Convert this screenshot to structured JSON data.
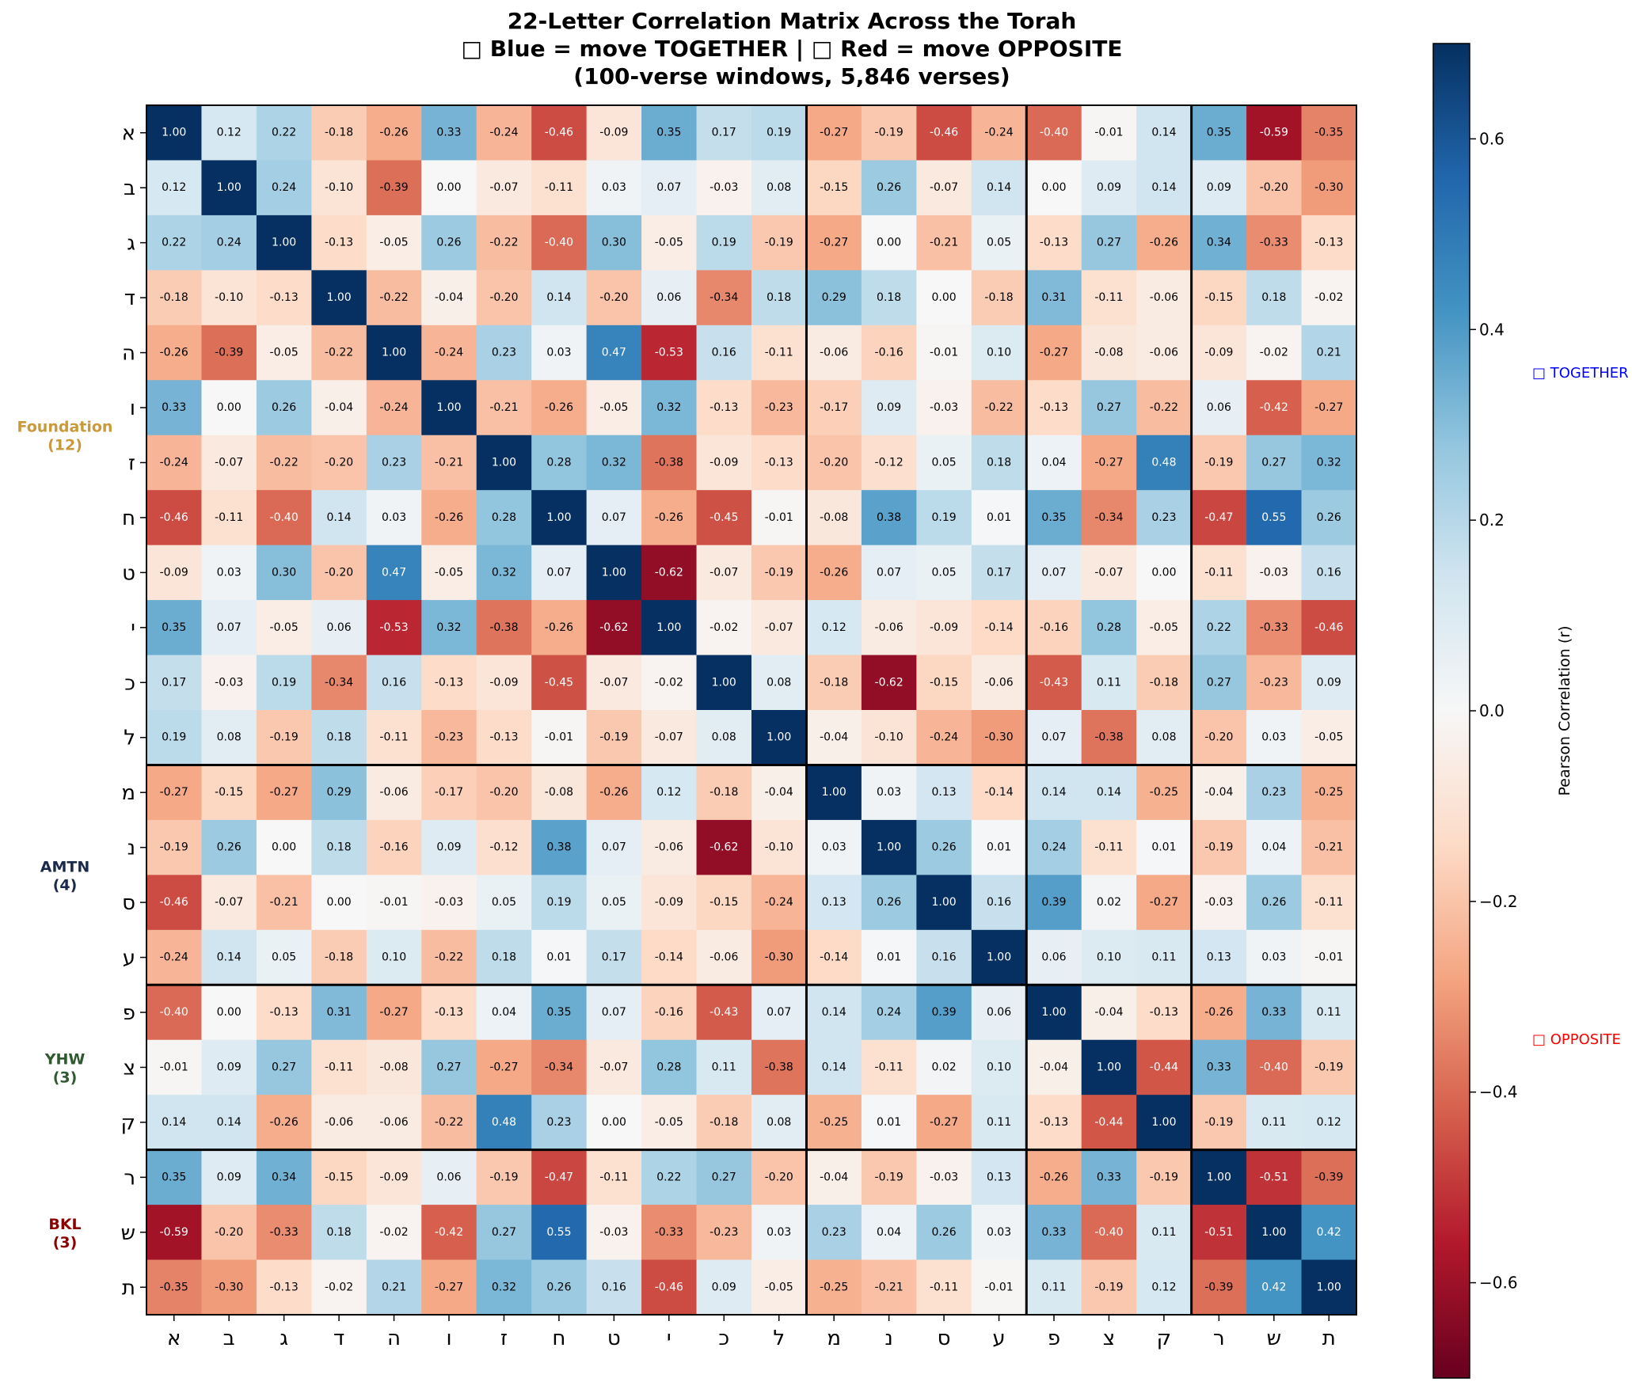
{
  "chart_data": {
    "type": "heatmap",
    "title": [
      "22-Letter Correlation Matrix Across the Torah",
      "□ Blue = move TOGETHER | □ Red = move OPPOSITE",
      "(100-verse windows, 5,846 verses)"
    ],
    "labels": [
      "א",
      "ב",
      "ג",
      "ד",
      "ה",
      "ו",
      "ז",
      "ח",
      "ט",
      "י",
      "כ",
      "ל",
      "מ",
      "נ",
      "ס",
      "ע",
      "פ",
      "צ",
      "ק",
      "ר",
      "ש",
      "ת"
    ],
    "matrix": [
      [
        1.0,
        0.12,
        0.22,
        -0.18,
        -0.26,
        0.33,
        -0.24,
        -0.46,
        -0.09,
        0.35,
        0.17,
        0.19,
        -0.27,
        -0.19,
        -0.46,
        -0.24,
        -0.4,
        -0.01,
        0.14,
        0.35,
        -0.59,
        -0.35
      ],
      [
        0.12,
        1.0,
        0.24,
        -0.1,
        -0.39,
        0.0,
        -0.07,
        -0.11,
        0.03,
        0.07,
        -0.03,
        0.08,
        -0.15,
        0.26,
        -0.07,
        0.14,
        -0.0,
        0.09,
        0.14,
        0.09,
        -0.2,
        -0.3
      ],
      [
        0.22,
        0.24,
        1.0,
        -0.13,
        -0.05,
        0.26,
        -0.22,
        -0.4,
        0.3,
        -0.05,
        0.19,
        -0.19,
        -0.27,
        0.0,
        -0.21,
        0.05,
        -0.13,
        0.27,
        -0.26,
        0.34,
        -0.33,
        -0.13
      ],
      [
        -0.18,
        -0.1,
        -0.13,
        1.0,
        -0.22,
        -0.04,
        -0.2,
        0.14,
        -0.2,
        0.06,
        -0.34,
        0.18,
        0.29,
        0.18,
        -0.0,
        -0.18,
        0.31,
        -0.11,
        -0.06,
        -0.15,
        0.18,
        -0.02
      ],
      [
        -0.26,
        -0.39,
        -0.05,
        -0.22,
        1.0,
        -0.24,
        0.23,
        0.03,
        0.47,
        -0.53,
        0.16,
        -0.11,
        -0.06,
        -0.16,
        -0.01,
        0.1,
        -0.27,
        -0.08,
        -0.06,
        -0.09,
        -0.02,
        0.21
      ],
      [
        0.33,
        0.0,
        0.26,
        -0.04,
        -0.24,
        1.0,
        -0.21,
        -0.26,
        -0.05,
        0.32,
        -0.13,
        -0.23,
        -0.17,
        0.09,
        -0.03,
        -0.22,
        -0.13,
        0.27,
        -0.22,
        0.06,
        -0.42,
        -0.27
      ],
      [
        -0.24,
        -0.07,
        -0.22,
        -0.2,
        0.23,
        -0.21,
        1.0,
        0.28,
        0.32,
        -0.38,
        -0.09,
        -0.13,
        -0.2,
        -0.12,
        0.05,
        0.18,
        0.04,
        -0.27,
        0.48,
        -0.19,
        0.27,
        0.32
      ],
      [
        -0.46,
        -0.11,
        -0.4,
        0.14,
        0.03,
        -0.26,
        0.28,
        1.0,
        0.07,
        -0.26,
        -0.45,
        -0.01,
        -0.08,
        0.38,
        0.19,
        0.01,
        0.35,
        -0.34,
        0.23,
        -0.47,
        0.55,
        0.26
      ],
      [
        -0.09,
        0.03,
        0.3,
        -0.2,
        0.47,
        -0.05,
        0.32,
        0.07,
        1.0,
        -0.62,
        -0.07,
        -0.19,
        -0.26,
        0.07,
        0.05,
        0.17,
        0.07,
        -0.07,
        -0.0,
        -0.11,
        -0.03,
        0.16
      ],
      [
        0.35,
        0.07,
        -0.05,
        0.06,
        -0.53,
        0.32,
        -0.38,
        -0.26,
        -0.62,
        1.0,
        -0.02,
        -0.07,
        0.12,
        -0.06,
        -0.09,
        -0.14,
        -0.16,
        0.28,
        -0.05,
        0.22,
        -0.33,
        -0.46
      ],
      [
        0.17,
        -0.03,
        0.19,
        -0.34,
        0.16,
        -0.13,
        -0.09,
        -0.45,
        -0.07,
        -0.02,
        1.0,
        0.08,
        -0.18,
        -0.62,
        -0.15,
        -0.06,
        -0.43,
        0.11,
        -0.18,
        0.27,
        -0.23,
        0.09
      ],
      [
        0.19,
        0.08,
        -0.19,
        0.18,
        -0.11,
        -0.23,
        -0.13,
        -0.01,
        -0.19,
        -0.07,
        0.08,
        1.0,
        -0.04,
        -0.1,
        -0.24,
        -0.3,
        0.07,
        -0.38,
        0.08,
        -0.2,
        0.03,
        -0.05
      ],
      [
        -0.27,
        -0.15,
        -0.27,
        0.29,
        -0.06,
        -0.17,
        -0.2,
        -0.08,
        -0.26,
        0.12,
        -0.18,
        -0.04,
        1.0,
        0.03,
        0.13,
        -0.14,
        0.14,
        0.14,
        -0.25,
        -0.04,
        0.23,
        -0.25
      ],
      [
        -0.19,
        0.26,
        0.0,
        0.18,
        -0.16,
        0.09,
        -0.12,
        0.38,
        0.07,
        -0.06,
        -0.62,
        -0.1,
        0.03,
        1.0,
        0.26,
        0.01,
        0.24,
        -0.11,
        0.01,
        -0.19,
        0.04,
        -0.21
      ],
      [
        -0.46,
        -0.07,
        -0.21,
        -0.0,
        -0.01,
        -0.03,
        0.05,
        0.19,
        0.05,
        -0.09,
        -0.15,
        -0.24,
        0.13,
        0.26,
        1.0,
        0.16,
        0.39,
        0.02,
        -0.27,
        -0.03,
        0.26,
        -0.11
      ],
      [
        -0.24,
        0.14,
        0.05,
        -0.18,
        0.1,
        -0.22,
        0.18,
        0.01,
        0.17,
        -0.14,
        -0.06,
        -0.3,
        -0.14,
        0.01,
        0.16,
        1.0,
        0.06,
        0.1,
        0.11,
        0.13,
        0.03,
        -0.01
      ],
      [
        -0.4,
        -0.0,
        -0.13,
        0.31,
        -0.27,
        -0.13,
        0.04,
        0.35,
        0.07,
        -0.16,
        -0.43,
        0.07,
        0.14,
        0.24,
        0.39,
        0.06,
        1.0,
        -0.04,
        -0.13,
        -0.26,
        0.33,
        0.11
      ],
      [
        -0.01,
        0.09,
        0.27,
        -0.11,
        -0.08,
        0.27,
        -0.27,
        -0.34,
        -0.07,
        0.28,
        0.11,
        -0.38,
        0.14,
        -0.11,
        0.02,
        0.1,
        -0.04,
        1.0,
        -0.44,
        0.33,
        -0.4,
        -0.19
      ],
      [
        0.14,
        0.14,
        -0.26,
        -0.06,
        -0.06,
        -0.22,
        0.48,
        0.23,
        -0.0,
        -0.05,
        -0.18,
        0.08,
        -0.25,
        0.01,
        -0.27,
        0.11,
        -0.13,
        -0.44,
        1.0,
        -0.19,
        0.11,
        0.12
      ],
      [
        0.35,
        0.09,
        0.34,
        -0.15,
        -0.09,
        0.06,
        -0.19,
        -0.47,
        -0.11,
        0.22,
        0.27,
        -0.2,
        -0.04,
        -0.19,
        -0.03,
        0.13,
        -0.26,
        0.33,
        -0.19,
        1.0,
        -0.51,
        -0.39
      ],
      [
        -0.59,
        -0.2,
        -0.33,
        0.18,
        -0.02,
        -0.42,
        0.27,
        0.55,
        -0.03,
        -0.33,
        -0.23,
        0.03,
        0.23,
        0.04,
        0.26,
        0.03,
        0.33,
        -0.4,
        0.11,
        -0.51,
        1.0,
        0.42
      ],
      [
        -0.35,
        -0.3,
        -0.13,
        -0.02,
        0.21,
        -0.27,
        0.32,
        0.26,
        0.16,
        -0.46,
        0.09,
        -0.05,
        -0.25,
        -0.21,
        -0.11,
        -0.01,
        0.11,
        -0.19,
        0.12,
        -0.39,
        0.42,
        1.0
      ]
    ],
    "groups": [
      {
        "name": "Foundation",
        "count": "(12)",
        "size": 12,
        "color": "#c9993a"
      },
      {
        "name": "AMTN",
        "count": "(4)",
        "size": 4,
        "color": "#1b2a4a"
      },
      {
        "name": "YHW",
        "count": "(3)",
        "size": 3,
        "color": "#2f5a2f"
      },
      {
        "name": "BKL",
        "count": "(3)",
        "size": 3,
        "color": "#8b0000"
      }
    ],
    "colormap": "RdBu",
    "vmin": -0.7,
    "vmax": 0.7,
    "colorbar": {
      "label": "Pearson Correlation (r)",
      "ticks": [
        -0.6,
        -0.4,
        -0.2,
        0.0,
        0.2,
        0.4,
        0.6
      ],
      "tick_labels": [
        "−0.6",
        "−0.4",
        "−0.2",
        "0.0",
        "0.2",
        "0.4",
        "0.6"
      ]
    },
    "annotations": {
      "together": {
        "text": "□ TOGETHER",
        "color": "#0000ff"
      },
      "opposite": {
        "text": "□ OPPOSITE",
        "color": "#ff0000"
      }
    },
    "value_format": "2 decimals"
  }
}
